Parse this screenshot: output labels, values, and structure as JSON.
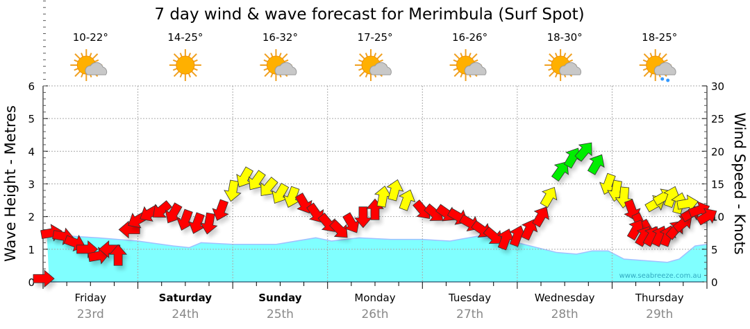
{
  "chart_data": {
    "type": "line",
    "title": "7 day wind & wave forecast for Merimbula (Surf Spot)",
    "ylabel_left": "Wave Height - Metres",
    "ylabel_right": "Wind Speed - Knots",
    "ylim_left": [
      0,
      6
    ],
    "ylim_right": [
      0,
      30
    ],
    "yticks_left": [
      "0",
      "1",
      "2",
      "3",
      "4",
      "5",
      "6"
    ],
    "yticks_right": [
      "0",
      "5",
      "10",
      "15",
      "20",
      "25",
      "30"
    ],
    "grid": true,
    "x_unit": "hours from Friday 00:00",
    "xlim": [
      0,
      168
    ],
    "days": [
      {
        "name": "Friday",
        "date": "23rd",
        "bold": false,
        "temp": "10-22°",
        "weather": "partly-cloudy-icon"
      },
      {
        "name": "Saturday",
        "date": "24th",
        "bold": true,
        "temp": "14-25°",
        "weather": "sunny-icon"
      },
      {
        "name": "Sunday",
        "date": "25th",
        "bold": true,
        "temp": "16-32°",
        "weather": "partly-cloudy-icon"
      },
      {
        "name": "Monday",
        "date": "26th",
        "bold": false,
        "temp": "17-25°",
        "weather": "partly-cloudy-icon"
      },
      {
        "name": "Tuesday",
        "date": "27th",
        "bold": false,
        "temp": "16-26°",
        "weather": "partly-cloudy-icon"
      },
      {
        "name": "Wednesday",
        "date": "28th",
        "bold": false,
        "temp": "18-30°",
        "weather": "partly-cloudy-icon"
      },
      {
        "name": "Thursday",
        "date": "29th",
        "bold": false,
        "temp": "18-25°",
        "weather": "showers-icon"
      }
    ],
    "wave_series": {
      "name": "Wave height (m)",
      "points": [
        [
          1,
          1.4
        ],
        [
          7,
          1.4
        ],
        [
          14,
          1.35
        ],
        [
          24,
          1.25
        ],
        [
          33,
          1.1
        ],
        [
          37,
          1.05
        ],
        [
          40,
          1.2
        ],
        [
          48,
          1.15
        ],
        [
          59,
          1.15
        ],
        [
          69,
          1.35
        ],
        [
          73,
          1.25
        ],
        [
          80,
          1.35
        ],
        [
          88,
          1.3
        ],
        [
          96,
          1.3
        ],
        [
          103,
          1.25
        ],
        [
          110,
          1.4
        ],
        [
          120,
          1.2
        ],
        [
          130,
          0.9
        ],
        [
          135,
          0.85
        ],
        [
          139,
          0.95
        ],
        [
          143,
          0.95
        ],
        [
          147,
          0.7
        ],
        [
          158,
          0.6
        ],
        [
          161,
          0.7
        ],
        [
          165,
          1.1
        ],
        [
          168,
          1.15
        ]
      ]
    },
    "wind_series": {
      "name": "Wind speed (knots), direction arrow points toward (deg), colour",
      "colors": {
        "r": "#ff0000",
        "y": "#ffff00",
        "g": "#00ee00"
      },
      "points": [
        [
          0,
          0.5,
          90,
          "r"
        ],
        [
          2,
          7.5,
          80,
          "r"
        ],
        [
          5,
          7,
          100,
          "r"
        ],
        [
          8,
          6,
          110,
          "r"
        ],
        [
          11,
          5,
          90,
          "r"
        ],
        [
          14,
          4,
          80,
          "r"
        ],
        [
          17,
          5,
          270,
          "r"
        ],
        [
          19,
          4,
          0,
          "r"
        ],
        [
          22,
          8,
          270,
          "r"
        ],
        [
          24,
          9.5,
          240,
          "r"
        ],
        [
          27,
          10.5,
          240,
          "r"
        ],
        [
          30,
          11,
          230,
          "r"
        ],
        [
          33,
          10.5,
          210,
          "r"
        ],
        [
          36,
          9.5,
          200,
          "r"
        ],
        [
          39,
          9,
          200,
          "r"
        ],
        [
          42,
          9,
          190,
          "r"
        ],
        [
          45,
          11,
          200,
          "r"
        ],
        [
          48,
          14,
          190,
          "y"
        ],
        [
          51,
          16,
          210,
          "y"
        ],
        [
          54,
          15.5,
          215,
          "y"
        ],
        [
          57,
          14.5,
          220,
          "y"
        ],
        [
          60,
          13.5,
          210,
          "y"
        ],
        [
          63,
          13,
          200,
          "y"
        ],
        [
          66,
          12,
          150,
          "r"
        ],
        [
          69,
          10.5,
          145,
          "r"
        ],
        [
          72,
          9,
          140,
          "r"
        ],
        [
          75,
          8,
          135,
          "r"
        ],
        [
          78,
          9,
          150,
          "r"
        ],
        [
          81,
          10,
          180,
          "r"
        ],
        [
          84,
          11,
          0,
          "r"
        ],
        [
          86,
          13,
          10,
          "y"
        ],
        [
          89,
          14,
          15,
          "y"
        ],
        [
          92,
          12.5,
          20,
          "y"
        ],
        [
          96,
          11,
          140,
          "r"
        ],
        [
          99,
          10.5,
          130,
          "r"
        ],
        [
          102,
          10.5,
          125,
          "r"
        ],
        [
          105,
          10,
          120,
          "r"
        ],
        [
          108,
          9,
          120,
          "r"
        ],
        [
          111,
          8,
          125,
          "r"
        ],
        [
          114,
          7,
          130,
          "r"
        ],
        [
          117,
          6.5,
          20,
          "r"
        ],
        [
          120,
          7,
          20,
          "r"
        ],
        [
          123,
          8,
          25,
          "r"
        ],
        [
          126,
          10,
          30,
          "r"
        ],
        [
          128,
          13,
          30,
          "y"
        ],
        [
          131,
          17,
          35,
          "g"
        ],
        [
          134,
          19,
          30,
          "g"
        ],
        [
          137,
          20,
          40,
          "g"
        ],
        [
          140,
          18,
          30,
          "g"
        ],
        [
          143,
          15,
          200,
          "y"
        ],
        [
          145,
          14,
          190,
          "y"
        ],
        [
          147,
          13,
          185,
          "y"
        ],
        [
          149,
          11,
          160,
          "r"
        ],
        [
          151,
          9,
          155,
          "r"
        ],
        [
          153,
          8,
          150,
          "r"
        ],
        [
          155,
          12,
          60,
          "y"
        ],
        [
          157,
          13,
          60,
          "y"
        ],
        [
          159,
          13,
          20,
          "y"
        ],
        [
          161,
          12,
          15,
          "y"
        ],
        [
          150,
          8,
          30,
          "r"
        ],
        [
          152,
          7,
          30,
          "r"
        ],
        [
          154,
          7,
          30,
          "r"
        ],
        [
          156,
          7,
          25,
          "r"
        ],
        [
          158,
          7,
          20,
          "r"
        ],
        [
          160,
          8,
          40,
          "r"
        ],
        [
          162,
          9,
          50,
          "r"
        ],
        [
          164,
          10.5,
          60,
          "r"
        ],
        [
          163,
          12,
          80,
          "y"
        ],
        [
          166,
          11,
          70,
          "r"
        ],
        [
          168,
          10,
          60,
          "r"
        ]
      ]
    },
    "watermark": "www.seabreeze.com.au"
  }
}
